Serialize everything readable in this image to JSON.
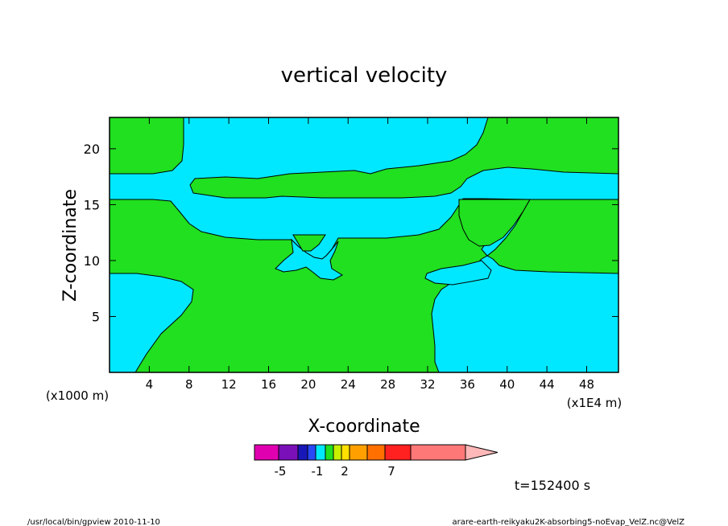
{
  "chart_data": {
    "type": "heatmap",
    "title": "vertical velocity",
    "xlabel": "X-coordinate",
    "ylabel": "Z-coordinate",
    "x_unit": "(x1E4 m)",
    "y_unit": "(x1000 m)",
    "xlim": [
      0,
      51.2
    ],
    "ylim": [
      0,
      22.8
    ],
    "x_ticks": [
      4,
      8,
      12,
      16,
      20,
      24,
      28,
      32,
      36,
      40,
      44,
      48
    ],
    "y_ticks": [
      5,
      10,
      15,
      20
    ],
    "legend": {
      "levels": [
        "-5",
        "-1",
        "2",
        "7"
      ],
      "colors": [
        "#e000b0",
        "#7a10b8",
        "#1818b8",
        "#2848f8",
        "#00e8ff",
        "#20e020",
        "#c8f000",
        "#ffe000",
        "#ffa000",
        "#ff7000",
        "#ff2020",
        "#ff7878",
        "#ffb8b8"
      ]
    },
    "fields": {
      "background": "#20e020",
      "negative_fill": "#00e8ff"
    },
    "time_label": "t=152400 s"
  },
  "footer": {
    "left": "/usr/local/bin/gpview  2010-11-10",
    "right": "arare-earth-reikyaku2K-absorbing5-noEvap_VelZ.nc@VelZ"
  }
}
